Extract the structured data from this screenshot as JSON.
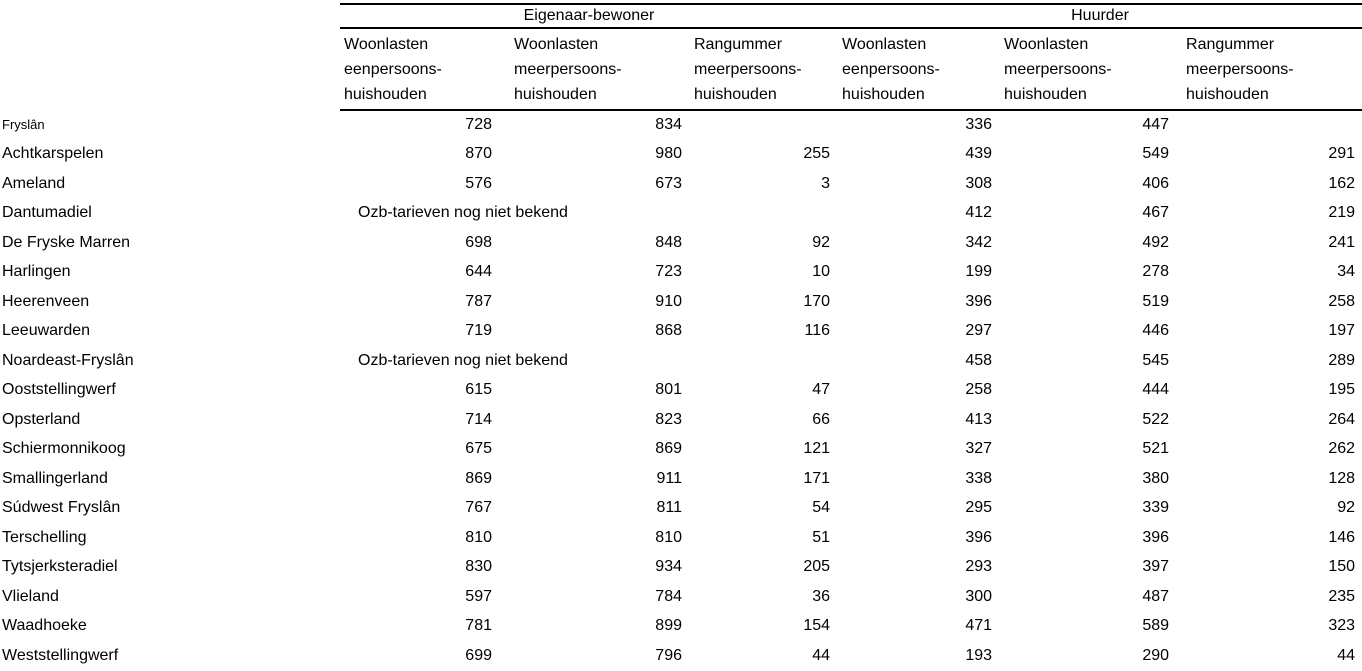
{
  "page": {
    "background_color": "#ffffff",
    "text_color": "#000000"
  },
  "table": {
    "group_headers": [
      {
        "label": "Eigenaar-bewoner"
      },
      {
        "label": "Huurder"
      }
    ],
    "column_headers": [
      "Woonlasten\neenpersoons-\nhuishouden",
      "Woonlasten\nmeerpersoons-\nhuishouden",
      "Rangummer\nmeerpersoons-\nhuishouden",
      "Woonlasten\neenpersoons-\nhuishouden",
      "Woonlasten\nmeerpersoons-\nhuishouden",
      "Rangummer\nmeerpersoons-\nhuishouden"
    ],
    "missing_note": "Ozb-tarieven nog niet bekend",
    "rows": [
      {
        "name": "Fryslân",
        "small_label": true,
        "values": [
          "728",
          "834",
          "",
          "336",
          "447",
          ""
        ]
      },
      {
        "name": "Achtkarspelen",
        "values": [
          "870",
          "980",
          "255",
          "439",
          "549",
          "291"
        ]
      },
      {
        "name": "Ameland",
        "values": [
          "576",
          "673",
          "3",
          "308",
          "406",
          "162"
        ]
      },
      {
        "name": "Dantumadiel",
        "note": true,
        "values": [
          "",
          "",
          "",
          "412",
          "467",
          "219"
        ]
      },
      {
        "name": "De Fryske Marren",
        "values": [
          "698",
          "848",
          "92",
          "342",
          "492",
          "241"
        ]
      },
      {
        "name": "Harlingen",
        "values": [
          "644",
          "723",
          "10",
          "199",
          "278",
          "34"
        ]
      },
      {
        "name": "Heerenveen",
        "values": [
          "787",
          "910",
          "170",
          "396",
          "519",
          "258"
        ]
      },
      {
        "name": "Leeuwarden",
        "values": [
          "719",
          "868",
          "116",
          "297",
          "446",
          "197"
        ]
      },
      {
        "name": "Noardeast-Fryslân",
        "note": true,
        "values": [
          "",
          "",
          "",
          "458",
          "545",
          "289"
        ]
      },
      {
        "name": "Ooststellingwerf",
        "values": [
          "615",
          "801",
          "47",
          "258",
          "444",
          "195"
        ]
      },
      {
        "name": "Opsterland",
        "values": [
          "714",
          "823",
          "66",
          "413",
          "522",
          "264"
        ]
      },
      {
        "name": "Schiermonnikoog",
        "values": [
          "675",
          "869",
          "121",
          "327",
          "521",
          "262"
        ]
      },
      {
        "name": "Smallingerland",
        "values": [
          "869",
          "911",
          "171",
          "338",
          "380",
          "128"
        ]
      },
      {
        "name": "Súdwest Fryslân",
        "values": [
          "767",
          "811",
          "54",
          "295",
          "339",
          "92"
        ]
      },
      {
        "name": "Terschelling",
        "values": [
          "810",
          "810",
          "51",
          "396",
          "396",
          "146"
        ]
      },
      {
        "name": "Tytsjerksteradiel",
        "values": [
          "830",
          "934",
          "205",
          "293",
          "397",
          "150"
        ]
      },
      {
        "name": "Vlieland",
        "values": [
          "597",
          "784",
          "36",
          "300",
          "487",
          "235"
        ]
      },
      {
        "name": "Waadhoeke",
        "values": [
          "781",
          "899",
          "154",
          "471",
          "589",
          "323"
        ]
      },
      {
        "name": "Weststellingwerf",
        "values": [
          "699",
          "796",
          "44",
          "193",
          "290",
          "44"
        ]
      }
    ]
  }
}
